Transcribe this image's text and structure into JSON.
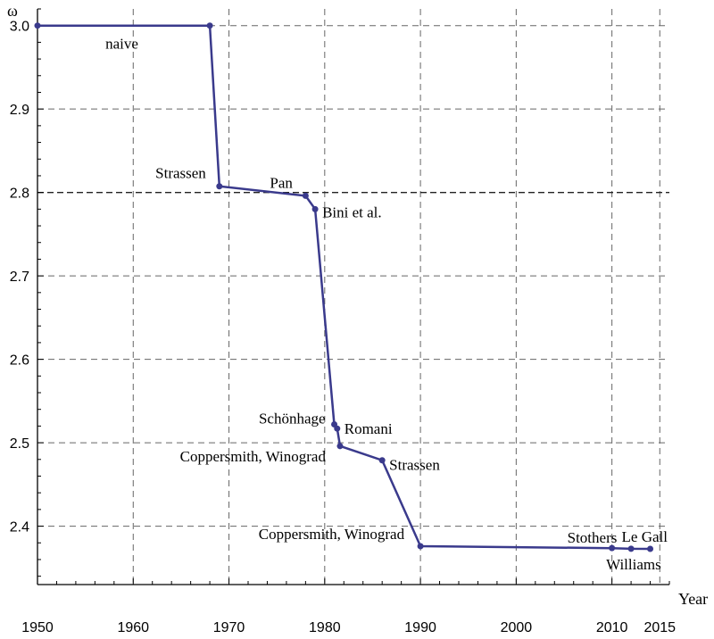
{
  "chart_data": {
    "type": "line",
    "xlabel": "Year",
    "ylabel": "ω",
    "xlim": [
      1950,
      2016
    ],
    "ylim": [
      2.33,
      3.02
    ],
    "x_ticks": [
      1950,
      1960,
      1970,
      1980,
      1990,
      2000,
      2010,
      2015
    ],
    "x_tick_labels": [
      "1950",
      "1960",
      "1970",
      "1980",
      "1990",
      "2000",
      "2010",
      "2015"
    ],
    "y_ticks": [
      2.4,
      2.5,
      2.6,
      2.7,
      2.8,
      2.9,
      3.0
    ],
    "y_tick_labels": [
      "2.4",
      "2.5",
      "2.6",
      "2.7",
      "2.8",
      "2.9",
      "3.0"
    ],
    "x_grid": [
      1960,
      1970,
      1980,
      1990,
      2000,
      2010,
      2015
    ],
    "y_grid": [
      2.4,
      2.5,
      2.6,
      2.7,
      2.9,
      3.0
    ],
    "reference_line_y": 2.8,
    "grid": true,
    "series": [
      {
        "color": "#3a3a8c",
        "points": [
          {
            "x": 1950,
            "y": 3.0,
            "label": ""
          },
          {
            "x": 1968,
            "y": 3.0,
            "label": "naive"
          },
          {
            "x": 1969,
            "y": 2.8074,
            "label": "Strassen"
          },
          {
            "x": 1978,
            "y": 2.796,
            "label": "Pan"
          },
          {
            "x": 1979,
            "y": 2.78,
            "label": "Bini et al."
          },
          {
            "x": 1981,
            "y": 2.522,
            "label": "Schönhage"
          },
          {
            "x": 1981.3,
            "y": 2.517,
            "label": "Romani"
          },
          {
            "x": 1981.6,
            "y": 2.496,
            "label": "Coppersmith, Winograd"
          },
          {
            "x": 1986,
            "y": 2.479,
            "label": "Strassen"
          },
          {
            "x": 1990,
            "y": 2.376,
            "label": "Coppersmith, Winograd"
          },
          {
            "x": 2010,
            "y": 2.3737,
            "label": "Stothers"
          },
          {
            "x": 2012,
            "y": 2.3729,
            "label": "Williams"
          },
          {
            "x": 2014,
            "y": 2.3728,
            "label": "Le Gall"
          }
        ]
      }
    ]
  }
}
